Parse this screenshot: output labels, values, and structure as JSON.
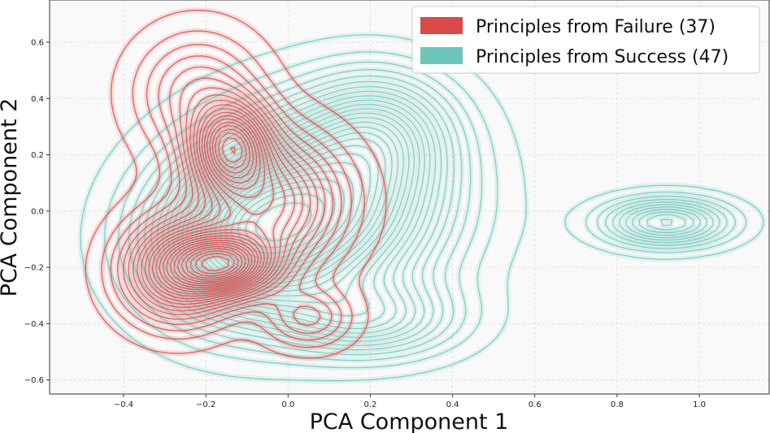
{
  "chart_data": {
    "type": "contour",
    "xlabel": "PCA Component 1",
    "ylabel": "PCA Component 2",
    "xlim": [
      -0.58,
      1.17
    ],
    "ylim": [
      -0.65,
      0.75
    ],
    "xticks": [
      -0.4,
      -0.2,
      0.0,
      0.2,
      0.4,
      0.6,
      0.8,
      1.0
    ],
    "xtick_labels": [
      "−0.4",
      "−0.2",
      "0.0",
      "0.2",
      "0.4",
      "0.6",
      "0.8",
      "1.0"
    ],
    "yticks": [
      -0.6,
      -0.4,
      -0.2,
      0.0,
      0.2,
      0.4,
      0.6
    ],
    "ytick_labels": [
      "−0.6",
      "−0.4",
      "−0.2",
      "0.0",
      "0.2",
      "0.4",
      "0.6"
    ],
    "grid": true,
    "legend_position": "top-right",
    "series": [
      {
        "name": "Principles from Failure (37)",
        "color": "#d94a4a",
        "kde_modes": [
          {
            "x": -0.14,
            "y": 0.23,
            "sx": 0.06,
            "sy": 0.1,
            "w": 0.9
          },
          {
            "x": -0.15,
            "y": -0.19,
            "sx": 0.08,
            "sy": 0.07,
            "w": 1.0
          },
          {
            "x": -0.27,
            "y": -0.21,
            "sx": 0.09,
            "sy": 0.12,
            "w": 0.8
          },
          {
            "x": -0.05,
            "y": 0.03,
            "sx": 0.12,
            "sy": 0.16,
            "w": 0.7
          },
          {
            "x": -0.22,
            "y": 0.42,
            "sx": 0.1,
            "sy": 0.14,
            "w": 0.35
          },
          {
            "x": 0.05,
            "y": -0.38,
            "sx": 0.07,
            "sy": 0.07,
            "w": 0.3
          }
        ]
      },
      {
        "name": "Principles from Success (47)",
        "color": "#6cc5b9",
        "kde_modes": [
          {
            "x": 0.08,
            "y": 0.02,
            "sx": 0.19,
            "sy": 0.21,
            "w": 1.0
          },
          {
            "x": -0.12,
            "y": -0.12,
            "sx": 0.15,
            "sy": 0.18,
            "w": 0.7
          },
          {
            "x": 0.22,
            "y": 0.28,
            "sx": 0.12,
            "sy": 0.14,
            "w": 0.45
          },
          {
            "x": 0.2,
            "y": -0.38,
            "sx": 0.14,
            "sy": 0.09,
            "w": 0.4
          },
          {
            "x": 0.92,
            "y": -0.04,
            "sx": 0.1,
            "sy": 0.055,
            "w": 0.55
          }
        ]
      }
    ]
  }
}
